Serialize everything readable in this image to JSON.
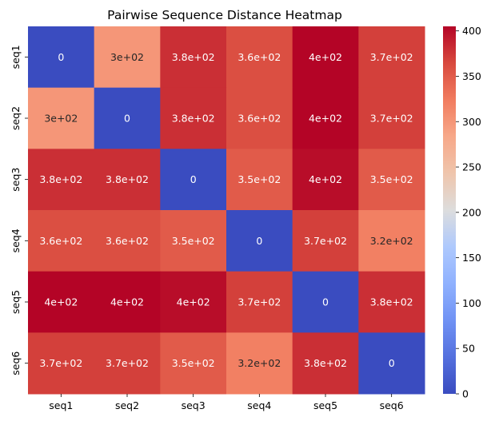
{
  "chart_data": {
    "type": "heatmap",
    "title": "Pairwise Sequence Distance Heatmap",
    "xlabel": "",
    "ylabel": "",
    "x_categories": [
      "seq1",
      "seq2",
      "seq3",
      "seq4",
      "seq5",
      "seq6"
    ],
    "y_categories": [
      "seq1",
      "seq2",
      "seq3",
      "seq4",
      "seq5",
      "seq6"
    ],
    "values": [
      [
        0,
        300,
        380,
        360,
        405,
        370
      ],
      [
        300,
        0,
        380,
        360,
        405,
        370
      ],
      [
        380,
        380,
        0,
        350,
        400,
        350
      ],
      [
        360,
        360,
        350,
        0,
        370,
        320
      ],
      [
        405,
        405,
        400,
        370,
        0,
        380
      ],
      [
        370,
        370,
        350,
        320,
        380,
        0
      ]
    ],
    "annotations": [
      [
        "0",
        "3e+02",
        "3.8e+02",
        "3.6e+02",
        "4e+02",
        "3.7e+02"
      ],
      [
        "3e+02",
        "0",
        "3.8e+02",
        "3.6e+02",
        "4e+02",
        "3.7e+02"
      ],
      [
        "3.8e+02",
        "3.8e+02",
        "0",
        "3.5e+02",
        "4e+02",
        "3.5e+02"
      ],
      [
        "3.6e+02",
        "3.6e+02",
        "3.5e+02",
        "0",
        "3.7e+02",
        "3.2e+02"
      ],
      [
        "4e+02",
        "4e+02",
        "4e+02",
        "3.7e+02",
        "0",
        "3.8e+02"
      ],
      [
        "3.7e+02",
        "3.7e+02",
        "3.5e+02",
        "3.2e+02",
        "3.8e+02",
        "0"
      ]
    ],
    "colormap": "coolwarm",
    "vmin": 0,
    "vmax": 405,
    "colorbar": {
      "ticks": [
        0,
        50,
        100,
        150,
        200,
        250,
        300,
        350,
        400
      ],
      "tick_labels": [
        "0",
        "50",
        "100",
        "150",
        "200",
        "250",
        "300",
        "350",
        "400"
      ]
    }
  },
  "colors": {
    "annotation_light": "#ffffff",
    "annotation_dark": "#262626",
    "axis": "#000000"
  }
}
